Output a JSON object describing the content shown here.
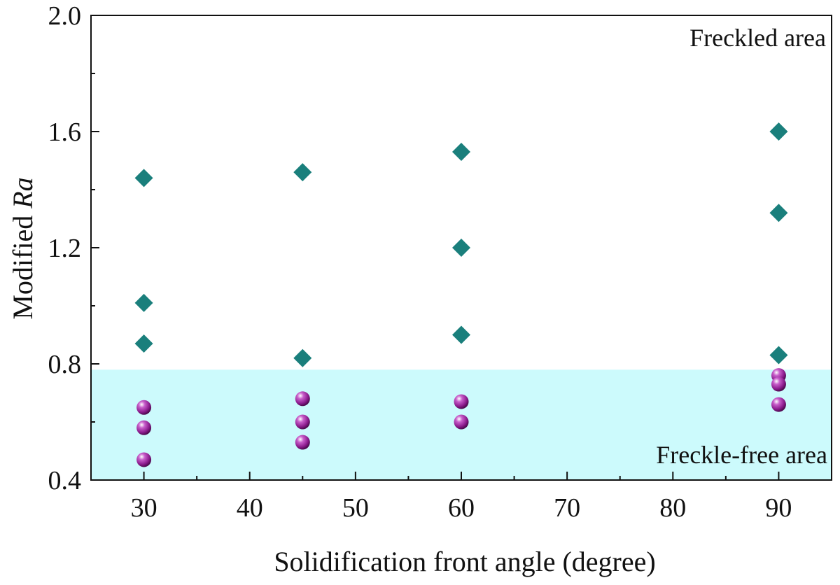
{
  "chart_data": {
    "type": "scatter",
    "title": "",
    "xlabel": "Solidification front angle (degree)",
    "ylabel": {
      "prefix": "Modified ",
      "italic": "Ra"
    },
    "xlim": [
      25,
      95
    ],
    "ylim": [
      0.4,
      2.0
    ],
    "xticks": [
      30,
      40,
      50,
      60,
      70,
      80,
      90
    ],
    "yticks": [
      0.4,
      0.8,
      1.2,
      1.6,
      2.0
    ],
    "ytick_labels": [
      "0.4",
      "0.8",
      "1.2",
      "1.6",
      "2.0"
    ],
    "grid": false,
    "legend": "none",
    "threshold": 0.78,
    "regions": {
      "freckled": {
        "label": "Freckled area"
      },
      "freckle_free": {
        "label": "Freckle-free area",
        "color": "#ccfafc"
      }
    },
    "series": [
      {
        "marker": "diamond",
        "color": "#1a7f7c",
        "points": [
          {
            "x": 30,
            "y": 1.44
          },
          {
            "x": 30,
            "y": 1.01
          },
          {
            "x": 30,
            "y": 0.87
          },
          {
            "x": 45,
            "y": 1.46
          },
          {
            "x": 45,
            "y": 0.82
          },
          {
            "x": 60,
            "y": 1.53
          },
          {
            "x": 60,
            "y": 1.2
          },
          {
            "x": 60,
            "y": 0.9
          },
          {
            "x": 90,
            "y": 1.6
          },
          {
            "x": 90,
            "y": 1.32
          },
          {
            "x": 90,
            "y": 0.83
          }
        ]
      },
      {
        "marker": "sphere",
        "color": "#8a1a8c",
        "points": [
          {
            "x": 30,
            "y": 0.65
          },
          {
            "x": 30,
            "y": 0.58
          },
          {
            "x": 30,
            "y": 0.47
          },
          {
            "x": 45,
            "y": 0.68
          },
          {
            "x": 45,
            "y": 0.6
          },
          {
            "x": 45,
            "y": 0.53
          },
          {
            "x": 60,
            "y": 0.67
          },
          {
            "x": 60,
            "y": 0.6
          },
          {
            "x": 90,
            "y": 0.76
          },
          {
            "x": 90,
            "y": 0.73
          },
          {
            "x": 90,
            "y": 0.66
          }
        ]
      }
    ]
  }
}
